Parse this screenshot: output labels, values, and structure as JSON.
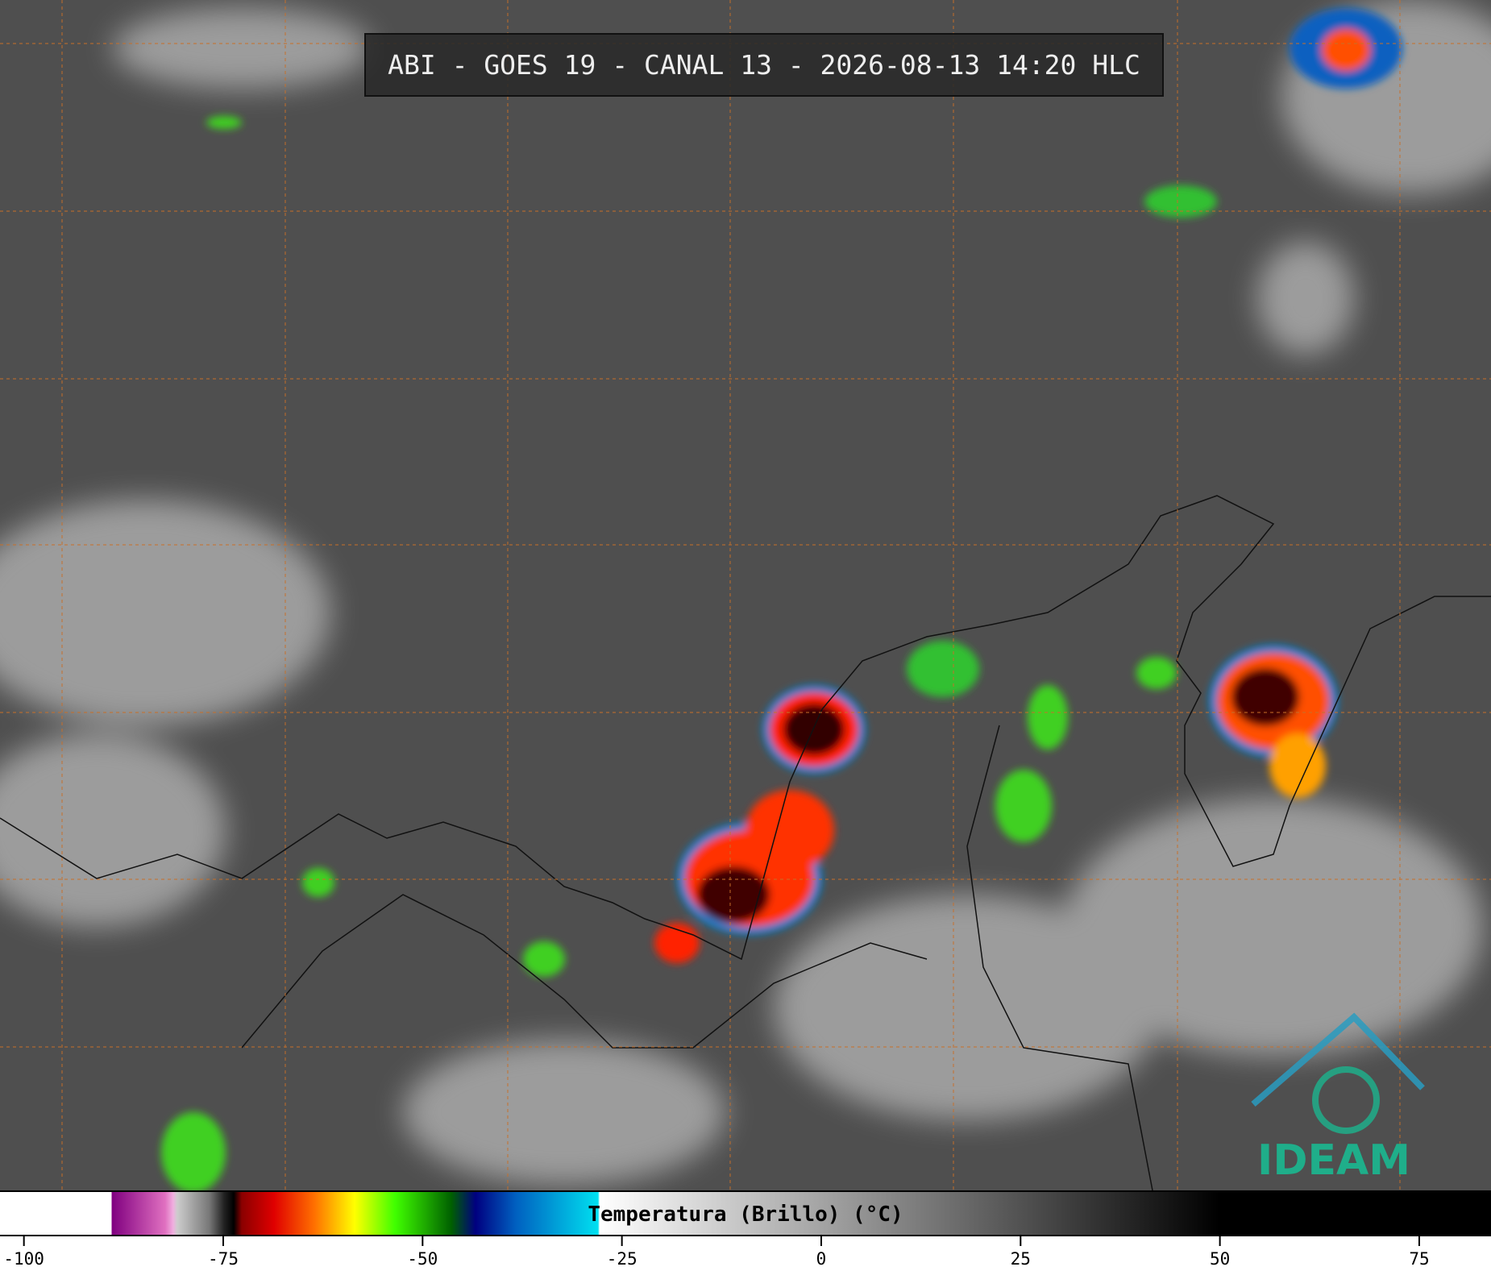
{
  "title": "ABI - GOES 19 - CANAL 13 - 2026-08-13 14:20 HLC",
  "colorbar": {
    "label": "Temperatura (Brillo) (°C)",
    "lim": [
      -103,
      84
    ],
    "ticks": [
      -100,
      -75,
      -50,
      -25,
      0,
      25,
      50,
      75
    ]
  },
  "logo": "IDEAM"
}
